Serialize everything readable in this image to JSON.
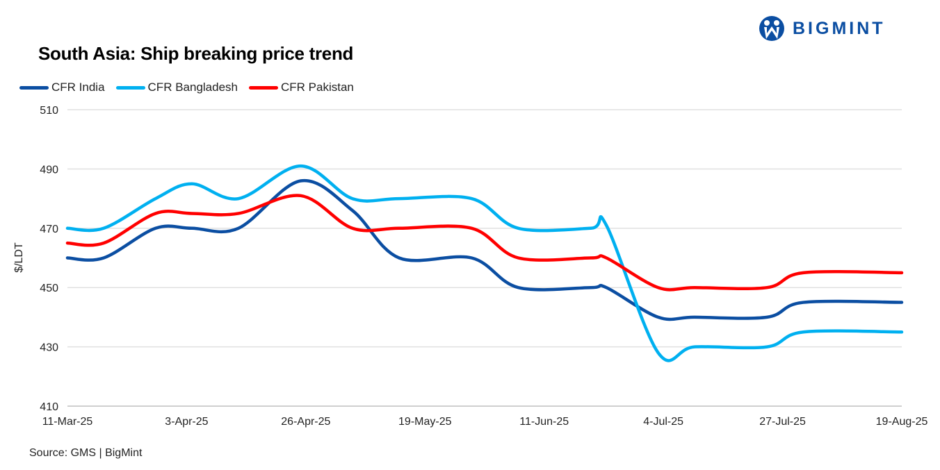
{
  "logo": {
    "text": "BIGMINT",
    "color": "#0b4ea2"
  },
  "source": "Source: GMS | BigMint",
  "chart_data": {
    "type": "line",
    "title": "South Asia: Ship breaking  price trend",
    "xlabel": "",
    "ylabel": "$/LDT",
    "ylim": [
      410,
      510
    ],
    "yticks": [
      410,
      430,
      450,
      470,
      490,
      510
    ],
    "xlim": [
      "2025-03-11",
      "2025-08-19"
    ],
    "xtick_labels": [
      "11-Mar-25",
      "3-Apr-25",
      "26-Apr-25",
      "19-May-25",
      "11-Jun-25",
      "4-Jul-25",
      "27-Jul-25",
      "19-Aug-25"
    ],
    "grid": "horizontal",
    "legend": "top-left",
    "smooth": true,
    "x": [
      "2025-03-11",
      "2025-03-18",
      "2025-03-28",
      "2025-04-04",
      "2025-04-13",
      "2025-04-25",
      "2025-05-05",
      "2025-05-14",
      "2025-05-28",
      "2025-06-06",
      "2025-06-20",
      "2025-06-23",
      "2025-07-03",
      "2025-07-10",
      "2025-07-24",
      "2025-07-31",
      "2025-08-19"
    ],
    "series": [
      {
        "name": "CFR India",
        "color": "#0b4ea2",
        "values": [
          460,
          460,
          470,
          470,
          470,
          486,
          476,
          460,
          460,
          450,
          450,
          450,
          440,
          440,
          440,
          445,
          445
        ]
      },
      {
        "name": "CFR Bangladesh",
        "color": "#00b0f0",
        "values": [
          470,
          470,
          480,
          485,
          480,
          491,
          480,
          480,
          480,
          470,
          470,
          471,
          428,
          430,
          430,
          435,
          435
        ]
      },
      {
        "name": "CFR Pakistan",
        "color": "#ff0000",
        "values": [
          465,
          465,
          475,
          475,
          475,
          481,
          470,
          470,
          470,
          460,
          460,
          460,
          450,
          450,
          450,
          455,
          455
        ]
      }
    ]
  }
}
